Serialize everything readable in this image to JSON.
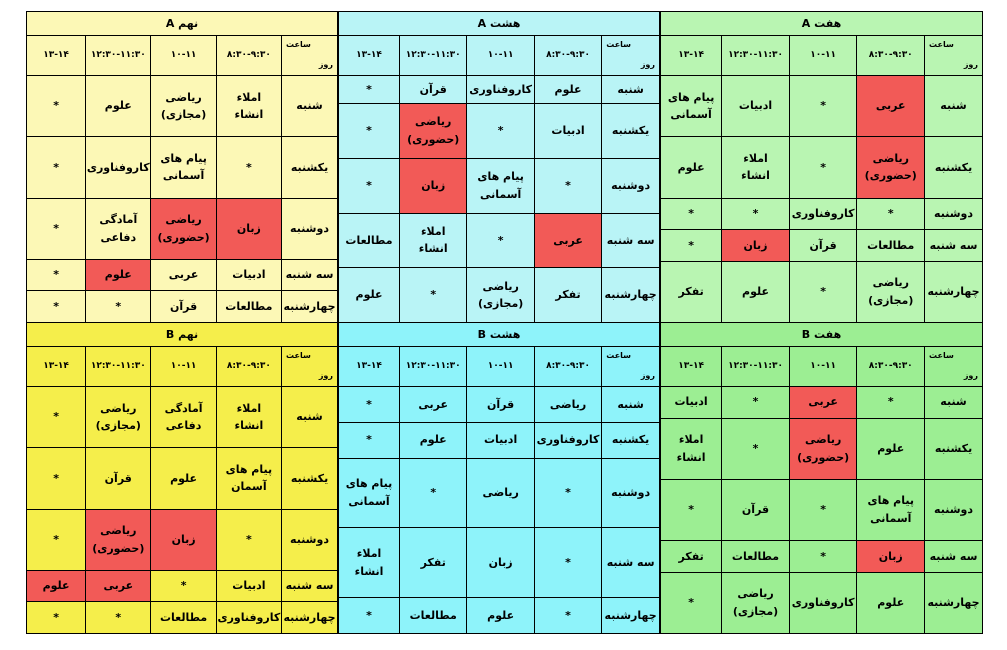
{
  "colors": {
    "haft": "#b9f5b2",
    "hasht": "#b9f4f6",
    "nohom_a": "#fcf8b6",
    "haft_b": "#9cee93",
    "hasht_b": "#8ef3fa",
    "nohom_b": "#f5ee4b",
    "highlight": "#f25a57"
  },
  "header_labels": {
    "hour": "ساعت",
    "day": "روز",
    "slots": [
      "۸:۳۰-۹:۳۰",
      "۱۰-۱۱",
      "۱۲:۳۰-۱۱:۳۰",
      "۱۳-۱۴"
    ]
  },
  "blocks": [
    {
      "id": "haft-a",
      "title": "هفت A",
      "color_key": "haft",
      "rows": [
        {
          "day": "شنبه",
          "cells": [
            "عربی",
            "*",
            "ادبیات",
            "پیام های\nآسمانی"
          ],
          "red": [
            0
          ]
        },
        {
          "day": "یکشنبه",
          "cells": [
            "ریاضی\n(حضوری)",
            "*",
            "املاء\nانشاء",
            "علوم"
          ],
          "red": [
            0
          ]
        },
        {
          "day": "دوشنبه",
          "cells": [
            "*",
            "کاروفناوری",
            "*",
            "*"
          ],
          "red": []
        },
        {
          "day": "سه شنبه",
          "cells": [
            "مطالعات",
            "قرآن",
            "زبان",
            "*"
          ],
          "red": [
            2
          ]
        },
        {
          "day": "چهارشنبه",
          "cells": [
            "ریاضی\n(مجازی)",
            "*",
            "علوم",
            "تفکر"
          ],
          "red": []
        }
      ]
    },
    {
      "id": "hasht-a",
      "title": "هشت A",
      "color_key": "hasht",
      "rows": [
        {
          "day": "شنبه",
          "cells": [
            "علوم",
            "کاروفناوری",
            "قرآن",
            "*"
          ],
          "red": []
        },
        {
          "day": "یکشنبه",
          "cells": [
            "ادبیات",
            "*",
            "ریاضی\n(حضوری)",
            "*"
          ],
          "red": [
            2
          ]
        },
        {
          "day": "دوشنبه",
          "cells": [
            "*",
            "پیام های\nآسمانی",
            "زبان",
            "*"
          ],
          "red": [
            2
          ]
        },
        {
          "day": "سه شنبه",
          "cells": [
            "عربی",
            "*",
            "املاء\nانشاء",
            "مطالعات"
          ],
          "red": [
            0
          ]
        },
        {
          "day": "چهارشنبه",
          "cells": [
            "تفکر",
            "ریاضی\n(مجازی)",
            "*",
            "علوم"
          ],
          "red": []
        }
      ]
    },
    {
      "id": "nohom-a",
      "title": "نهم A",
      "color_key": "nohom_a",
      "rows": [
        {
          "day": "شنبه",
          "cells": [
            "املاء\nانشاء",
            "ریاضی\n(مجازی)",
            "علوم",
            "*"
          ],
          "red": []
        },
        {
          "day": "یکشنبه",
          "cells": [
            "*",
            "پیام های\nآسمانی",
            "کاروفناوری",
            "*"
          ],
          "red": []
        },
        {
          "day": "دوشنبه",
          "cells": [
            "زبان",
            "ریاضی\n(حضوری)",
            "آمادگی\nدفاعی",
            "*"
          ],
          "red": [
            0,
            1
          ]
        },
        {
          "day": "سه شنبه",
          "cells": [
            "ادبیات",
            "عربی",
            "علوم",
            "*"
          ],
          "red": [
            2
          ]
        },
        {
          "day": "چهارشنبه",
          "cells": [
            "مطالعات",
            "قرآن",
            "*",
            "*"
          ],
          "red": []
        }
      ]
    },
    {
      "id": "haft-b",
      "title": "هفت B",
      "color_key": "haft_b",
      "rows": [
        {
          "day": "شنبه",
          "cells": [
            "*",
            "عربی",
            "*",
            "ادبیات"
          ],
          "red": [
            1
          ]
        },
        {
          "day": "یکشنبه",
          "cells": [
            "علوم",
            "ریاضی\n(حضوری)",
            "*",
            "املاء\nانشاء"
          ],
          "red": [
            1
          ]
        },
        {
          "day": "دوشنبه",
          "cells": [
            "پیام های\nآسمانی",
            "*",
            "قرآن",
            "*"
          ],
          "red": []
        },
        {
          "day": "سه شنبه",
          "cells": [
            "زبان",
            "*",
            "مطالعات",
            "تفکر"
          ],
          "red": [
            0
          ]
        },
        {
          "day": "چهارشنبه",
          "cells": [
            "علوم",
            "کاروفناوری",
            "ریاضی\n(مجازی)",
            "*"
          ],
          "red": []
        }
      ]
    },
    {
      "id": "hasht-b",
      "title": "هشت B",
      "color_key": "hasht_b",
      "rows": [
        {
          "day": "شنبه",
          "cells": [
            "ریاضی",
            "قرآن",
            "عربی",
            "*"
          ],
          "red": []
        },
        {
          "day": "یکشنبه",
          "cells": [
            "کاروفناوری",
            "ادبیات",
            "علوم",
            "*"
          ],
          "red": []
        },
        {
          "day": "دوشنبه",
          "cells": [
            "*",
            "ریاضی",
            "*",
            "پیام های\nآسمانی"
          ],
          "red": []
        },
        {
          "day": "سه شنبه",
          "cells": [
            "*",
            "زبان",
            "تفکر",
            "املاء\nانشاء"
          ],
          "red": []
        },
        {
          "day": "چهارشنبه",
          "cells": [
            "*",
            "علوم",
            "مطالعات",
            "*"
          ],
          "red": []
        }
      ]
    },
    {
      "id": "nohom-b",
      "title": "نهم B",
      "color_key": "nohom_b",
      "rows": [
        {
          "day": "شنبه",
          "cells": [
            "املاء\nانشاء",
            "آمادگی\nدفاعی",
            "ریاضی\n(مجازی)",
            "*"
          ],
          "red": []
        },
        {
          "day": "یکشنبه",
          "cells": [
            "پیام های\nآسمان",
            "علوم",
            "قرآن",
            "*"
          ],
          "red": []
        },
        {
          "day": "دوشنبه",
          "cells": [
            "*",
            "زبان",
            "ریاضی\n(حضوری)",
            "*"
          ],
          "red": [
            1,
            2
          ]
        },
        {
          "day": "سه شنبه",
          "cells": [
            "ادبیات",
            "*",
            "عربی",
            "علوم"
          ],
          "red": [
            2,
            3
          ]
        },
        {
          "day": "چهارشنبه",
          "cells": [
            "کاروفناوری",
            "مطالعات",
            "*",
            "*"
          ],
          "red": []
        }
      ]
    }
  ]
}
